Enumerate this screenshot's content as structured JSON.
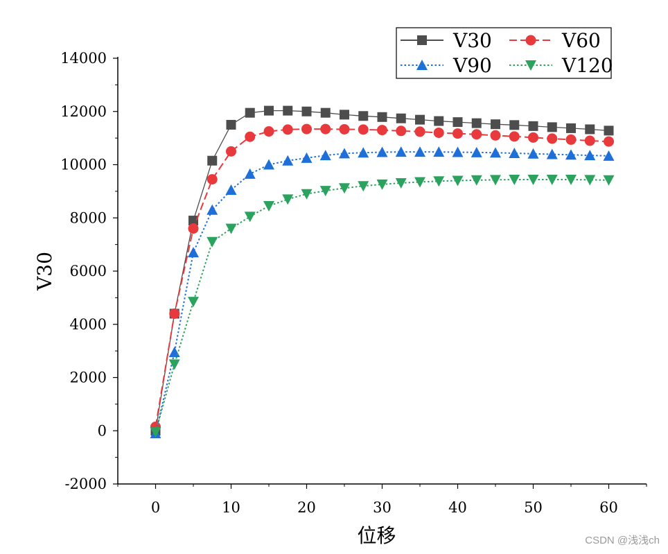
{
  "chart_data": {
    "type": "line",
    "title": "",
    "xlabel": "位移",
    "ylabel": "V30",
    "xlim": [
      -5,
      65
    ],
    "ylim": [
      -2000,
      14000
    ],
    "xticks": [
      0,
      10,
      20,
      30,
      40,
      50,
      60
    ],
    "yticks": [
      -2000,
      0,
      2000,
      4000,
      6000,
      8000,
      10000,
      12000,
      14000
    ],
    "grid": false,
    "legend_position": "top-right",
    "series": [
      {
        "name": "V30",
        "color": "#4d4d4d",
        "marker": "square",
        "line_style": "solid",
        "x": [
          0,
          2.5,
          5,
          7.5,
          10,
          12.5,
          15,
          17.5,
          20,
          22.5,
          25,
          27.5,
          30,
          32.5,
          35,
          37.5,
          40,
          42.5,
          45,
          47.5,
          50,
          52.5,
          55,
          57.5,
          60
        ],
        "y": [
          0,
          4400,
          7900,
          10150,
          11500,
          11950,
          12030,
          12030,
          12000,
          11950,
          11880,
          11830,
          11790,
          11740,
          11690,
          11640,
          11600,
          11560,
          11520,
          11490,
          11450,
          11410,
          11370,
          11330,
          11280
        ]
      },
      {
        "name": "V60",
        "color": "#e8393c",
        "marker": "circle",
        "line_style": "dashed",
        "x": [
          0,
          2.5,
          5,
          7.5,
          10,
          12.5,
          15,
          17.5,
          20,
          22.5,
          25,
          27.5,
          30,
          32.5,
          35,
          37.5,
          40,
          42.5,
          45,
          47.5,
          50,
          52.5,
          55,
          57.5,
          60
        ],
        "y": [
          150,
          4400,
          7600,
          9450,
          10500,
          11050,
          11250,
          11320,
          11340,
          11340,
          11330,
          11320,
          11300,
          11270,
          11240,
          11200,
          11170,
          11140,
          11100,
          11060,
          11020,
          10980,
          10940,
          10900,
          10870
        ]
      },
      {
        "name": "V90",
        "color": "#1f6fd8",
        "marker": "triangle-up",
        "line_style": "dotted",
        "x": [
          0,
          2.5,
          5,
          7.5,
          10,
          12.5,
          15,
          17.5,
          20,
          22.5,
          25,
          27.5,
          30,
          32.5,
          35,
          37.5,
          40,
          42.5,
          45,
          47.5,
          50,
          52.5,
          55,
          57.5,
          60
        ],
        "y": [
          -100,
          2950,
          6700,
          8300,
          9050,
          9650,
          10000,
          10150,
          10250,
          10350,
          10420,
          10450,
          10470,
          10480,
          10480,
          10480,
          10470,
          10460,
          10450,
          10430,
          10410,
          10390,
          10370,
          10350,
          10330
        ]
      },
      {
        "name": "V120",
        "color": "#2ca25f",
        "marker": "triangle-down",
        "line_style": "dotted",
        "x": [
          0,
          2.5,
          5,
          7.5,
          10,
          12.5,
          15,
          17.5,
          20,
          22.5,
          25,
          27.5,
          30,
          32.5,
          35,
          37.5,
          40,
          42.5,
          45,
          47.5,
          50,
          52.5,
          55,
          57.5,
          60
        ],
        "y": [
          -50,
          2500,
          4850,
          7100,
          7600,
          8050,
          8450,
          8700,
          8900,
          9020,
          9120,
          9200,
          9260,
          9310,
          9350,
          9380,
          9400,
          9420,
          9430,
          9440,
          9440,
          9440,
          9440,
          9430,
          9420
        ]
      }
    ]
  },
  "watermark": "CSDN @浅浅ch"
}
